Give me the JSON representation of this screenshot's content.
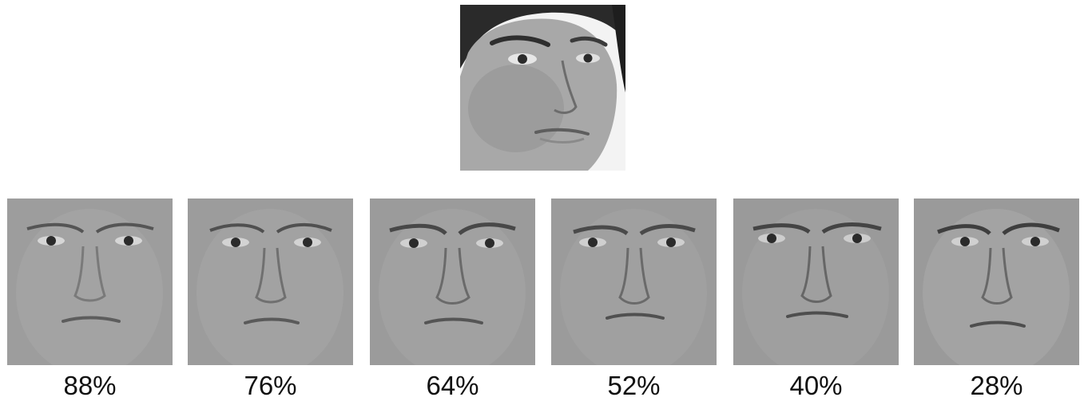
{
  "target_face": {
    "description_icon": "face-photo-icon"
  },
  "morphs": [
    {
      "label": "88%",
      "icon": "face-morph-icon"
    },
    {
      "label": "76%",
      "icon": "face-morph-icon"
    },
    {
      "label": "64%",
      "icon": "face-morph-icon"
    },
    {
      "label": "52%",
      "icon": "face-morph-icon"
    },
    {
      "label": "40%",
      "icon": "face-morph-icon"
    },
    {
      "label": "28%",
      "icon": "face-morph-icon"
    }
  ],
  "colors": {
    "background": "#ffffff",
    "face_gray": "#9b9b9b",
    "text": "#111111"
  }
}
